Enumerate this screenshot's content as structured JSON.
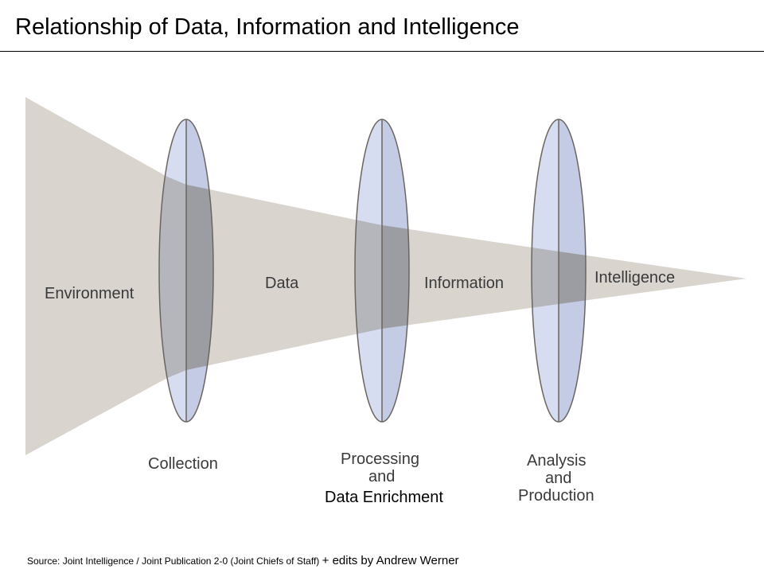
{
  "title": "Relationship of Data, Information and Intelligence",
  "stages": {
    "environment": "Environment",
    "data": "Data",
    "information": "Information",
    "intelligence": "Intelligence"
  },
  "lenses": {
    "collection": "Collection",
    "processing_line1": "Processing",
    "processing_line2": "and",
    "processing_line3": "Data Enrichment",
    "analysis_line1": "Analysis",
    "analysis_line2": "and",
    "analysis_line3": "Production"
  },
  "source": {
    "text": "Source:  Joint Intelligence / Joint Publication 2-0  (Joint Chiefs of Staff)",
    "edits": "+ edits by Andrew Werner"
  },
  "colors": {
    "beam": "#d9d4ce",
    "lens": "#c9d3ea",
    "lens_outline": "#6b6560"
  }
}
